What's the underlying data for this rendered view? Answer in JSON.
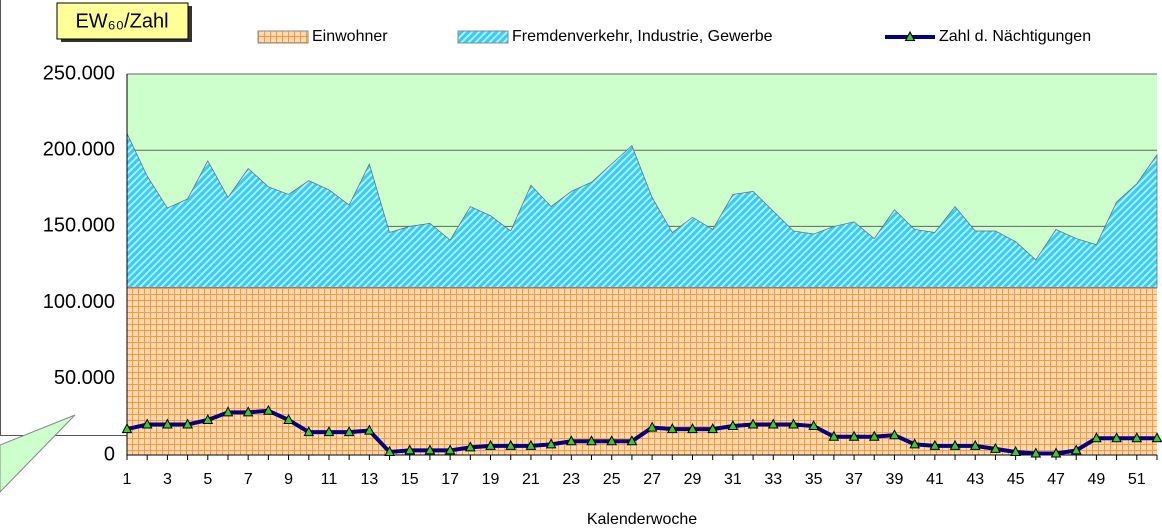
{
  "chart_data": {
    "type": "area",
    "y_label": "EW₆₀/Zahl",
    "x_label": "Kalenderwoche",
    "categories": [
      1,
      null,
      3,
      null,
      5,
      null,
      7,
      null,
      9,
      null,
      11,
      null,
      13,
      null,
      15,
      null,
      17,
      null,
      19,
      null,
      21,
      null,
      23,
      null,
      25,
      null,
      27,
      null,
      29,
      null,
      31,
      null,
      33,
      null,
      35,
      null,
      37,
      null,
      39,
      null,
      41,
      null,
      43,
      null,
      45,
      null,
      47,
      null,
      49,
      null,
      51,
      null
    ],
    "ylim": [
      0,
      250000
    ],
    "yticks": [
      0,
      {
        "value": 50000,
        "label": "50.000"
      },
      {
        "value": 100000,
        "label": "100.000"
      },
      {
        "value": 150000,
        "label": "150.000"
      },
      {
        "value": 200000,
        "label": "200.000"
      },
      {
        "value": 250000,
        "label": "250.000"
      }
    ],
    "grid": true,
    "plot_background": "#ccffcc",
    "legend": "top",
    "series": [
      {
        "name": "Einwohner",
        "type": "area",
        "color": "#ffd9b3",
        "pattern_color": "#ff9933",
        "values": [
          110000,
          110000,
          110000,
          110000,
          110000,
          110000,
          110000,
          110000,
          110000,
          110000,
          110000,
          110000,
          110000,
          110000,
          110000,
          110000,
          110000,
          110000,
          110000,
          110000,
          110000,
          110000,
          110000,
          110000,
          110000,
          110000,
          110000,
          110000,
          110000,
          110000,
          110000,
          110000,
          110000,
          110000,
          110000,
          110000,
          110000,
          110000,
          110000,
          110000,
          110000,
          110000,
          110000,
          110000,
          110000,
          110000,
          110000,
          110000,
          110000,
          110000,
          110000,
          110000
        ]
      },
      {
        "name": "Fremdenverkehr, Industrie, Gewerbe",
        "type": "area",
        "color": "#33ccff",
        "pattern_color": "#b3f0ff",
        "values": [
          101000,
          73000,
          52000,
          58000,
          83000,
          59000,
          78000,
          66000,
          61000,
          70000,
          64000,
          54000,
          81000,
          36000,
          40000,
          42000,
          31000,
          53000,
          47000,
          37000,
          67000,
          53000,
          63000,
          69000,
          81000,
          93000,
          59000,
          36000,
          46000,
          38000,
          61000,
          63000,
          50000,
          37000,
          35000,
          40000,
          43000,
          32000,
          51000,
          38000,
          36000,
          53000,
          37000,
          37000,
          30000,
          18000,
          38000,
          32000,
          28000,
          56000,
          68000,
          87000
        ]
      },
      {
        "name": "Zahl d. Nächtigungen",
        "type": "line",
        "color": "#000080",
        "marker_color": "#33cc33",
        "values": [
          17000,
          20000,
          20000,
          20000,
          23000,
          28000,
          28000,
          29000,
          23000,
          15000,
          15000,
          15000,
          16000,
          2000,
          3000,
          3000,
          3000,
          5000,
          6000,
          6000,
          6000,
          7000,
          9000,
          9000,
          9000,
          9000,
          18000,
          17000,
          17000,
          17000,
          19000,
          20000,
          20000,
          20000,
          19000,
          12000,
          12000,
          12000,
          13000,
          7000,
          6000,
          6000,
          6000,
          4000,
          2000,
          1000,
          1000,
          3000,
          11000,
          11000,
          11000,
          11000
        ]
      }
    ]
  }
}
